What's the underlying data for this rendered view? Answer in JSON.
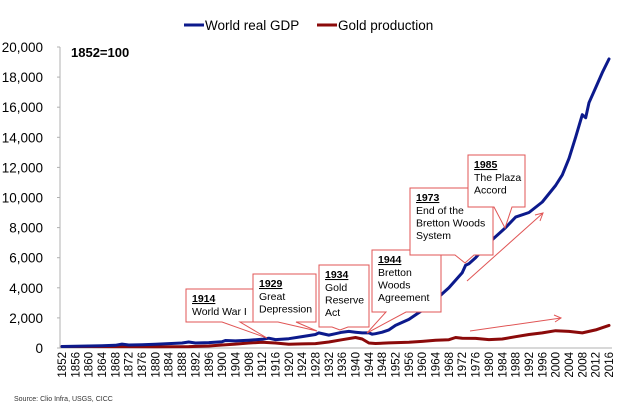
{
  "chart_data": {
    "type": "line",
    "title": "",
    "note": "1852=100",
    "xlabel": "",
    "ylabel": "",
    "ylim": [
      0,
      20000
    ],
    "xlim": [
      1852,
      2016
    ],
    "grid": false,
    "legend_position": "top-center",
    "y_ticks": [
      "0",
      "2,000",
      "4,000",
      "6,000",
      "8,000",
      "10,000",
      "12,000",
      "14,000",
      "16,000",
      "18,000",
      "20,000"
    ],
    "y_tick_values": [
      0,
      2000,
      4000,
      6000,
      8000,
      10000,
      12000,
      14000,
      16000,
      18000,
      20000
    ],
    "x_ticks": [
      "1852",
      "1856",
      "1860",
      "1864",
      "1868",
      "1872",
      "1876",
      "1880",
      "1884",
      "1888",
      "1892",
      "1896",
      "1900",
      "1904",
      "1908",
      "1912",
      "1916",
      "1920",
      "1924",
      "1928",
      "1932",
      "1936",
      "1940",
      "1944",
      "1948",
      "1952",
      "1956",
      "1960",
      "1964",
      "1968",
      "1972",
      "1976",
      "1980",
      "1984",
      "1988",
      "1992",
      "1996",
      "2000",
      "2004",
      "2008",
      "2012",
      "2016"
    ],
    "series": [
      {
        "name": "World real GDP",
        "color": "#0c1a8c",
        "x": [
          1852,
          1856,
          1860,
          1864,
          1868,
          1870,
          1872,
          1876,
          1880,
          1884,
          1888,
          1890,
          1892,
          1896,
          1900,
          1901,
          1904,
          1908,
          1912,
          1914,
          1916,
          1920,
          1924,
          1928,
          1929,
          1932,
          1934,
          1936,
          1938,
          1940,
          1942,
          1944,
          1945,
          1946,
          1948,
          1950,
          1952,
          1956,
          1960,
          1964,
          1968,
          1972,
          1973,
          1974,
          1976,
          1980,
          1984,
          1985,
          1988,
          1992,
          1996,
          2000,
          2002,
          2004,
          2006,
          2008,
          2009,
          2010,
          2012,
          2014,
          2016
        ],
        "values": [
          100,
          110,
          130,
          150,
          180,
          260,
          200,
          220,
          250,
          290,
          330,
          400,
          330,
          360,
          420,
          500,
          470,
          520,
          580,
          650,
          560,
          620,
          760,
          900,
          1000,
          860,
          950,
          1050,
          1100,
          1050,
          1000,
          1000,
          920,
          950,
          1050,
          1200,
          1500,
          1900,
          2500,
          3200,
          4000,
          5000,
          5500,
          5600,
          6000,
          7000,
          7800,
          8000,
          8700,
          9000,
          9700,
          10800,
          11500,
          12600,
          14000,
          15500,
          15300,
          16300,
          17300,
          18300,
          19200
        ]
      },
      {
        "name": "Gold production",
        "color": "#8b0a0a",
        "x": [
          1852,
          1860,
          1870,
          1880,
          1890,
          1896,
          1900,
          1904,
          1908,
          1912,
          1916,
          1920,
          1924,
          1928,
          1932,
          1936,
          1940,
          1942,
          1944,
          1946,
          1950,
          1956,
          1960,
          1964,
          1968,
          1970,
          1972,
          1976,
          1980,
          1984,
          1988,
          1992,
          1996,
          2000,
          2004,
          2008,
          2010,
          2012,
          2014,
          2016
        ],
        "values": [
          100,
          100,
          90,
          80,
          90,
          130,
          200,
          260,
          330,
          380,
          330,
          250,
          270,
          290,
          400,
          550,
          700,
          600,
          330,
          300,
          340,
          380,
          440,
          520,
          550,
          700,
          650,
          640,
          560,
          600,
          750,
          900,
          1000,
          1150,
          1100,
          1000,
          1100,
          1200,
          1350,
          1500
        ]
      }
    ],
    "annotations": [
      {
        "year_label": "1914",
        "text": [
          "World War I"
        ]
      },
      {
        "year_label": "1929",
        "text": [
          "Great",
          "Depression"
        ]
      },
      {
        "year_label": "1934",
        "text": [
          "Gold",
          "Reserve",
          "Act"
        ]
      },
      {
        "year_label": "1944",
        "text": [
          "Bretton",
          "Woods",
          "Agreement"
        ]
      },
      {
        "year_label": "1973",
        "text": [
          "End of the",
          "Bretton Woods",
          "System"
        ]
      },
      {
        "year_label": "1985",
        "text": [
          "The Plaza",
          "Accord"
        ]
      }
    ],
    "source": "Source: Clio Infra, USGS, CICC"
  }
}
